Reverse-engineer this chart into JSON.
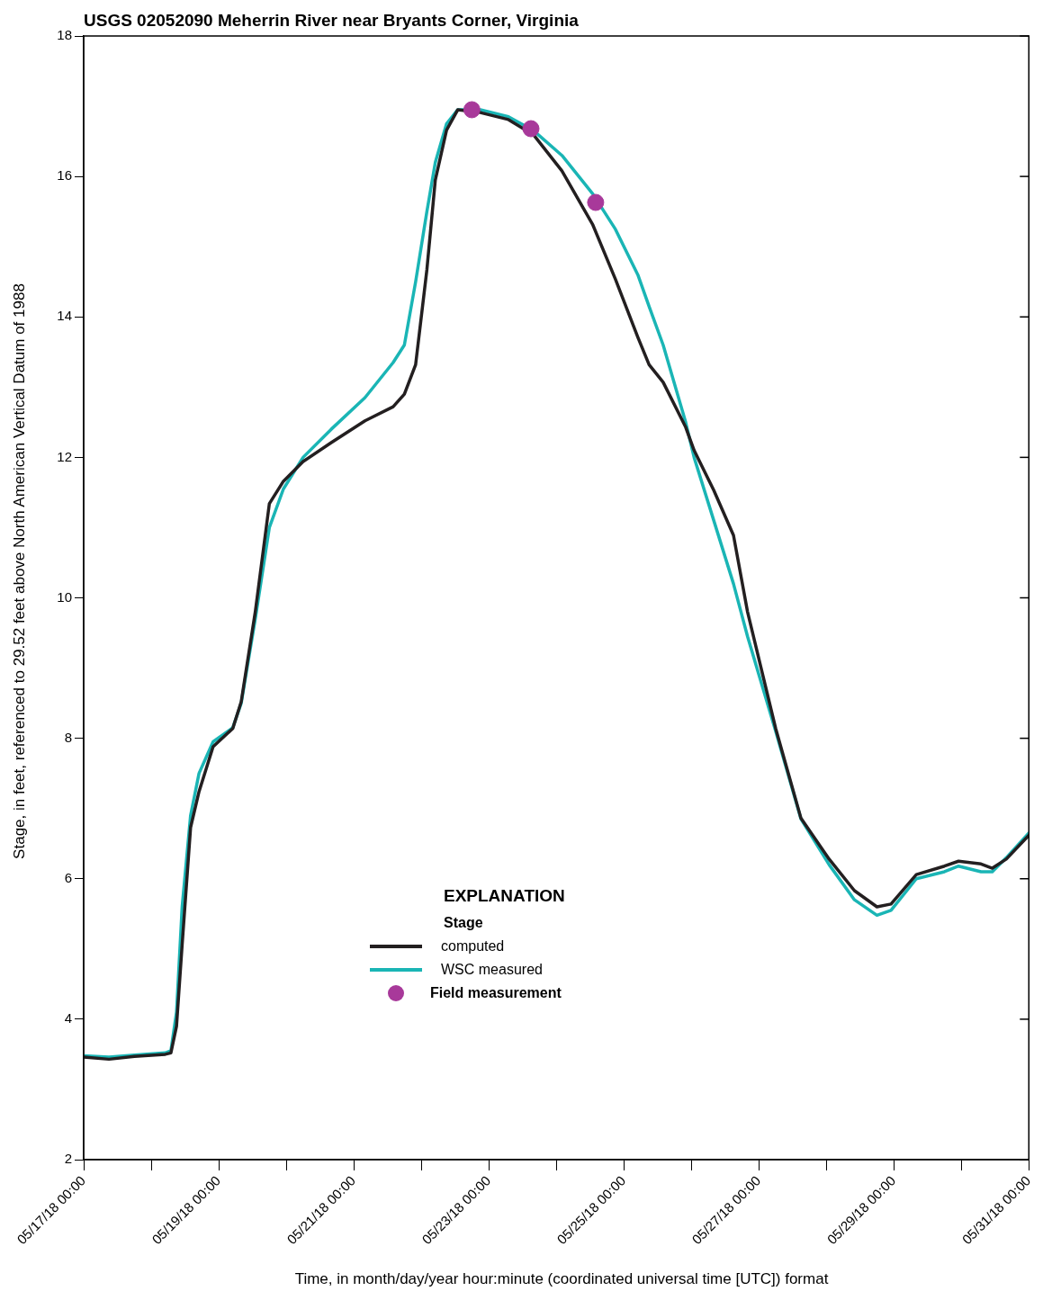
{
  "chart_data": {
    "type": "line",
    "title": "USGS 02052090 Meherrin River near Bryants Corner, Virginia",
    "xlabel": "Time, in month/day/year hour:minute (coordinated universal time [UTC]) format",
    "ylabel": "Stage, in feet, referenced to 29.52 feet above North American Vertical Datum of 1988",
    "legend_title": "EXPLANATION",
    "annotations": [
      "Stage"
    ],
    "x": [
      "--05-17T00:00",
      "--05-17T09:00",
      "--05-17T18:00",
      "--05-18T05:00",
      "--05-18T07:00",
      "--05-18T09:00",
      "--05-18T11:00",
      "--05-18T14:00",
      "--05-18T17:00",
      "--05-18T22:00",
      "--05-19T05:00",
      "--05-19T08:00",
      "--05-19T13:00",
      "--05-19T18:00",
      "--05-19T23:00",
      "--05-20T06:00",
      "--05-20T16:00",
      "--05-21T04:00",
      "--05-21T14:00",
      "--05-21T18:00",
      "--05-21T22:00",
      "--05-22T02:00",
      "--05-22T05:00",
      "--05-22T09:00",
      "--05-22T13:00",
      "--05-22T21:00",
      "--05-23T07:00",
      "--05-23T16:00",
      "--05-24T02:00",
      "--05-24T13:00",
      "--05-24T21:00",
      "--05-25T05:00",
      "--05-25T09:00",
      "--05-25T14:00",
      "--05-25T22:00",
      "--05-26T01:00",
      "--05-26T08:00",
      "--05-26T15:00",
      "--05-26T20:00",
      "--05-27T06:00",
      "--05-27T15:00",
      "--05-28T01:00",
      "--05-28T10:00",
      "--05-28T18:00",
      "--05-28T23:00",
      "--05-29T08:00",
      "--05-29T18:00",
      "--05-29T23:00",
      "--05-30T07:00",
      "--05-30T11:00",
      "--05-30T16:00",
      "--05-31T00:00"
    ],
    "series": [
      {
        "name": "computed",
        "color": "#231f20",
        "values": [
          3.46,
          3.43,
          3.47,
          3.5,
          3.52,
          3.9,
          5.06,
          6.73,
          7.24,
          7.88,
          8.14,
          8.52,
          9.8,
          11.34,
          11.66,
          11.94,
          12.21,
          12.52,
          12.72,
          12.9,
          13.32,
          14.67,
          15.95,
          16.66,
          16.95,
          16.91,
          16.81,
          16.59,
          16.08,
          15.31,
          14.54,
          13.71,
          13.32,
          13.07,
          12.43,
          12.1,
          11.53,
          10.89,
          9.8,
          8.14,
          6.86,
          6.28,
          5.83,
          5.6,
          5.64,
          6.06,
          6.18,
          6.25,
          6.21,
          6.15,
          6.28,
          6.62
        ]
      },
      {
        "name": "WSC measured",
        "color": "#1ab5b5",
        "values": [
          3.48,
          3.46,
          3.49,
          3.52,
          3.55,
          4.1,
          5.6,
          6.9,
          7.5,
          7.95,
          8.15,
          8.5,
          9.7,
          11.0,
          11.55,
          12.0,
          12.4,
          12.85,
          13.35,
          13.6,
          14.5,
          15.5,
          16.2,
          16.75,
          16.95,
          16.95,
          16.85,
          16.65,
          16.3,
          15.75,
          15.25,
          14.6,
          14.15,
          13.6,
          12.5,
          12.0,
          11.1,
          10.2,
          9.45,
          8.1,
          6.85,
          6.2,
          5.7,
          5.48,
          5.55,
          6.0,
          6.1,
          6.18,
          6.1,
          6.1,
          6.3,
          6.65
        ]
      },
      {
        "name": "Field measurement",
        "type": "scatter",
        "marker": "circle",
        "color": "#a8399a",
        "x": [
          "--05-22T18:00",
          "--05-23T15:00",
          "--05-24T14:00"
        ],
        "values": [
          16.95,
          16.68,
          15.63
        ]
      }
    ],
    "xlim": [
      "--05-17T00:00",
      "--05-31T00:00"
    ],
    "xticks": [
      {
        "value": "--05-17T00:00",
        "label": "05/17/18 00:00"
      },
      {
        "value": "--05-18T00:00",
        "label": null
      },
      {
        "value": "--05-19T00:00",
        "label": "05/19/18 00:00"
      },
      {
        "value": "--05-20T00:00",
        "label": null
      },
      {
        "value": "--05-21T00:00",
        "label": "05/21/18 00:00"
      },
      {
        "value": "--05-22T00:00",
        "label": null
      },
      {
        "value": "--05-23T00:00",
        "label": "05/23/18 00:00"
      },
      {
        "value": "--05-24T00:00",
        "label": null
      },
      {
        "value": "--05-25T00:00",
        "label": "05/25/18 00:00"
      },
      {
        "value": "--05-26T00:00",
        "label": null
      },
      {
        "value": "--05-27T00:00",
        "label": "05/27/18 00:00"
      },
      {
        "value": "--05-28T00:00",
        "label": null
      },
      {
        "value": "--05-29T00:00",
        "label": "05/29/18 00:00"
      },
      {
        "value": "--05-30T00:00",
        "label": null
      },
      {
        "value": "--05-31T00:00",
        "label": "05/31/18 00:00"
      }
    ],
    "ylim": [
      2,
      18
    ],
    "yticks": [
      2,
      4,
      6,
      8,
      10,
      12,
      14,
      16,
      18
    ],
    "grid": false,
    "legend": "bottom",
    "marker": "none",
    "line_style": "solid"
  }
}
